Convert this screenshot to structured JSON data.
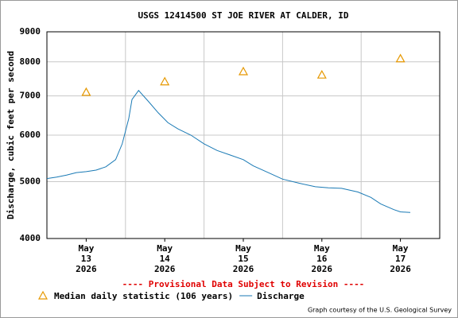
{
  "chart_data": {
    "type": "line",
    "title": "USGS 12414500 ST JOE RIVER AT CALDER, ID",
    "y_label": "Discharge, cubic feet per second",
    "annotation": "---- Provisional Data Subject to Revision ----",
    "credit": "Graph courtesy of the U.S. Geological Survey",
    "log_y": true,
    "grid": true,
    "ylim": [
      4000,
      9000
    ],
    "yticks": [
      4000,
      5000,
      6000,
      7000,
      8000,
      9000
    ],
    "xlim": [
      "2026-05-13 00:00",
      "2026-05-18 00:00"
    ],
    "xticks": [
      {
        "value": "2026-05-13 12:00",
        "label": "May 13 2026"
      },
      {
        "value": "2026-05-14 12:00",
        "label": "May 14 2026"
      },
      {
        "value": "2026-05-15 12:00",
        "label": "May 15 2026"
      },
      {
        "value": "2026-05-16 12:00",
        "label": "May 16 2026"
      },
      {
        "value": "2026-05-17 12:00",
        "label": "May 17 2026"
      }
    ],
    "xgrid": [
      "2026-05-14 00:00",
      "2026-05-15 00:00",
      "2026-05-16 00:00",
      "2026-05-17 00:00"
    ],
    "series": [
      {
        "name": "Median daily statistic (106 years)",
        "color": "#e69800",
        "marker": "triangle",
        "x": [
          "2026-05-13 12:00",
          "2026-05-14 12:00",
          "2026-05-15 12:00",
          "2026-05-16 12:00",
          "2026-05-17 12:00"
        ],
        "values": [
          7100,
          7400,
          7700,
          7600,
          8100
        ]
      },
      {
        "name": "Discharge",
        "color": "#1a7ab5",
        "marker": "line",
        "x": [
          "2026-05-13 00:00",
          "2026-05-13 03:00",
          "2026-05-13 06:00",
          "2026-05-13 09:00",
          "2026-05-13 12:00",
          "2026-05-13 15:00",
          "2026-05-13 18:00",
          "2026-05-13 21:00",
          "2026-05-13 23:00",
          "2026-05-14 01:00",
          "2026-05-14 02:00",
          "2026-05-14 04:00",
          "2026-05-14 07:00",
          "2026-05-14 10:00",
          "2026-05-14 13:00",
          "2026-05-14 16:00",
          "2026-05-14 20:00",
          "2026-05-15 00:00",
          "2026-05-15 04:00",
          "2026-05-15 08:00",
          "2026-05-15 12:00",
          "2026-05-15 15:00",
          "2026-05-15 19:00",
          "2026-05-16 00:00",
          "2026-05-16 05:00",
          "2026-05-16 10:00",
          "2026-05-16 14:00",
          "2026-05-16 18:00",
          "2026-05-16 23:00",
          "2026-05-17 03:00",
          "2026-05-17 06:00",
          "2026-05-17 10:00",
          "2026-05-17 12:00",
          "2026-05-17 15:00"
        ],
        "values": [
          5060,
          5090,
          5130,
          5180,
          5200,
          5230,
          5300,
          5450,
          5800,
          6400,
          6900,
          7150,
          6850,
          6550,
          6300,
          6150,
          6000,
          5800,
          5650,
          5550,
          5450,
          5320,
          5200,
          5050,
          4970,
          4900,
          4880,
          4870,
          4800,
          4700,
          4580,
          4480,
          4440,
          4430
        ]
      }
    ]
  }
}
